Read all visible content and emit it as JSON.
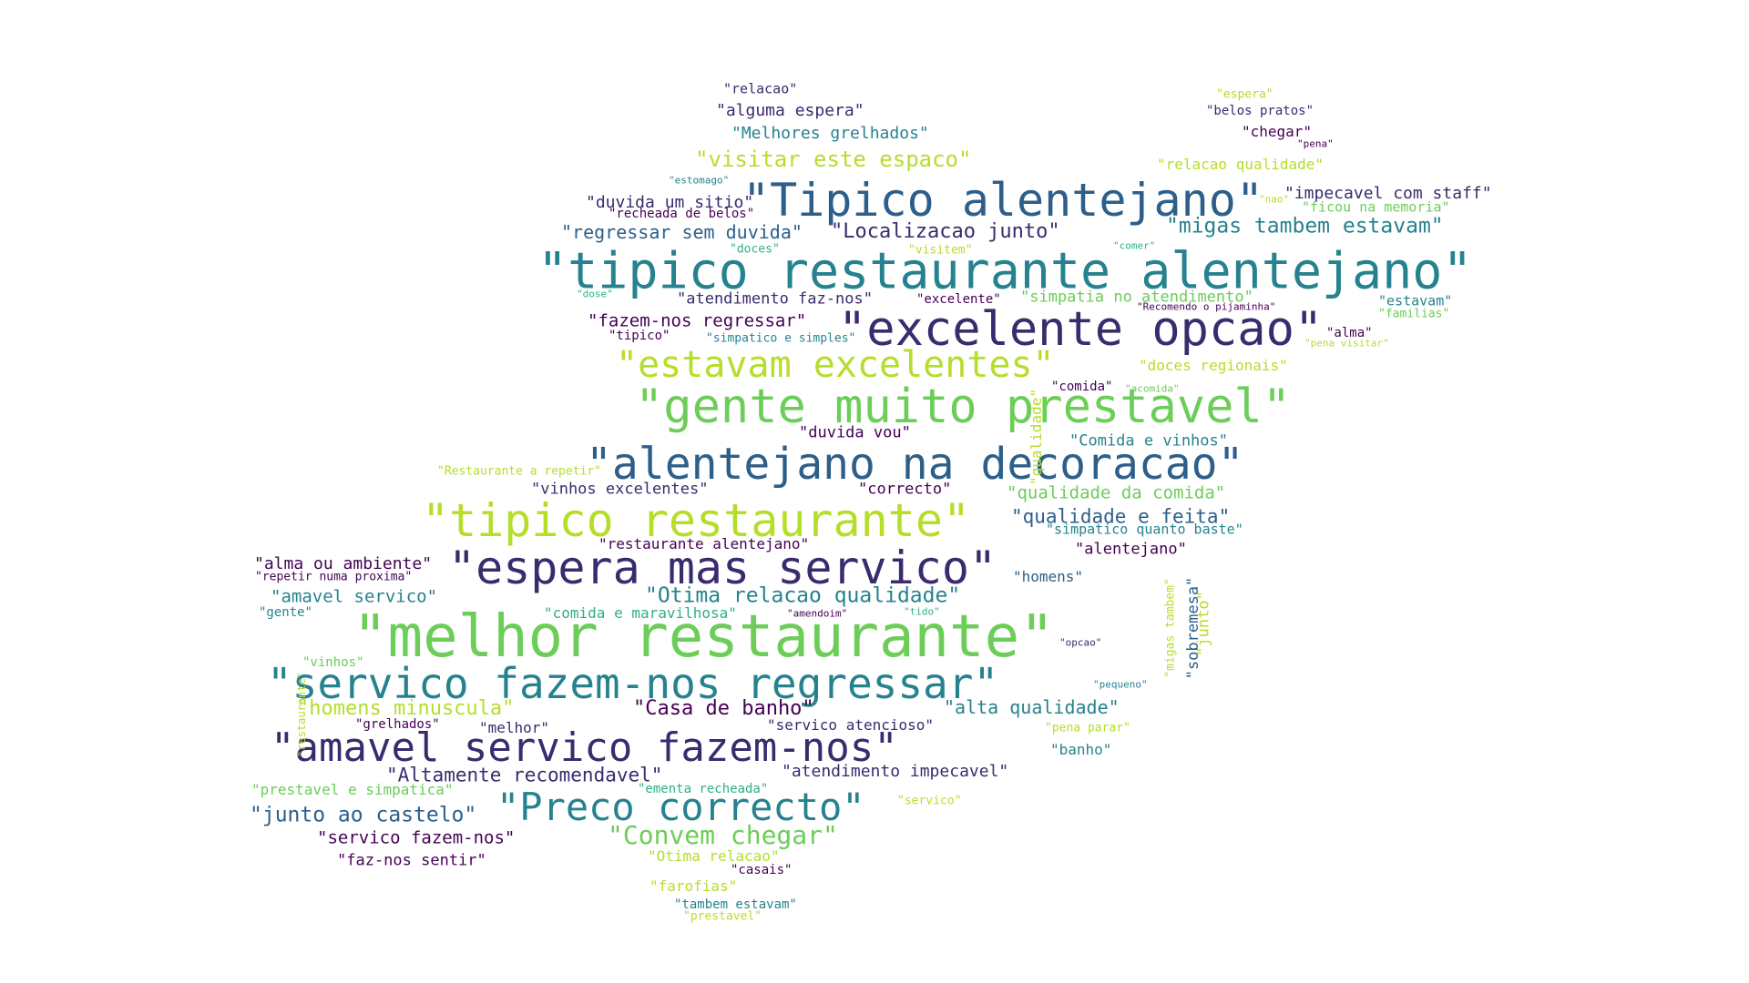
{
  "colors": {
    "c1": "#3a2b6e",
    "c2": "#2c5f8a",
    "c3": "#26828e",
    "c4": "#2db27d",
    "c5": "#6ccd59",
    "c6": "#b5de2b",
    "c7": "#440154"
  },
  "words": [
    {
      "text": "\"relacao\""
    },
    {
      "text": "\"alguma espera\""
    },
    {
      "text": "\"Melhores grelhados\""
    },
    {
      "text": "\"visitar este espaco\""
    },
    {
      "text": "\"estomago\""
    },
    {
      "text": "\"Tipico alentejano\""
    },
    {
      "text": "\"duvida um sitio\""
    },
    {
      "text": "\"recheada de belos\""
    },
    {
      "text": "\"regressar sem duvida\""
    },
    {
      "text": "\"Localizacao junto\""
    },
    {
      "text": "\"doces\""
    },
    {
      "text": "\"visitem\""
    },
    {
      "text": "\"comer\""
    },
    {
      "text": "\"tipico restaurante alentejano\""
    },
    {
      "text": "\"dose\""
    },
    {
      "text": "\"atendimento faz-nos\""
    },
    {
      "text": "\"excelente\""
    },
    {
      "text": "\"simpatia no atendimento\""
    },
    {
      "text": "\"Recomendo o pijaminha\""
    },
    {
      "text": "\"fazem-nos regressar\""
    },
    {
      "text": "\"tipico\""
    },
    {
      "text": "\"simpatico e simples\""
    },
    {
      "text": "\"excelente opcao\""
    },
    {
      "text": "\"estavam excelentes\""
    },
    {
      "text": "\"doces regionais\""
    },
    {
      "text": "\"gente muito prestavel\""
    },
    {
      "text": "\"comida\""
    },
    {
      "text": "\"acomida\""
    },
    {
      "text": "\"duvida vou\""
    },
    {
      "text": "\"Comida e vinhos\""
    },
    {
      "text": "\"alentejano na decoracao\""
    },
    {
      "text": "\"Restaurante a repetir\""
    },
    {
      "text": "\"vinhos excelentes\""
    },
    {
      "text": "\"correcto\""
    },
    {
      "text": "\"qualidade da comida\""
    },
    {
      "text": "\"tipico restaurante\""
    },
    {
      "text": "\"qualidade e feita\""
    },
    {
      "text": "\"simpatico quanto baste\""
    },
    {
      "text": "\"restaurante alentejano\""
    },
    {
      "text": "\"alentejano\""
    },
    {
      "text": "\"alma ou ambiente\""
    },
    {
      "text": "\"repetir numa proxima\""
    },
    {
      "text": "\"espera mas servico\""
    },
    {
      "text": "\"homens\""
    },
    {
      "text": "\"amavel servico\""
    },
    {
      "text": "\"Otima relacao qualidade\""
    },
    {
      "text": "\"gente\""
    },
    {
      "text": "\"comida e maravilhosa\""
    },
    {
      "text": "\"amendoim\""
    },
    {
      "text": "\"tido\""
    },
    {
      "text": "\"melhor restaurante\""
    },
    {
      "text": "\"opcao\""
    },
    {
      "text": "\"vinhos\""
    },
    {
      "text": "\"servico fazem-nos regressar\""
    },
    {
      "text": "\"pequeno\""
    },
    {
      "text": "\"homens minuscula\""
    },
    {
      "text": "\"Casa de banho\""
    },
    {
      "text": "\"alta qualidade\""
    },
    {
      "text": "\"grelhados\""
    },
    {
      "text": "\"melhor\""
    },
    {
      "text": "\"servico atencioso\""
    },
    {
      "text": "\"pena parar\""
    },
    {
      "text": "\"amavel servico fazem-nos\""
    },
    {
      "text": "\"banho\""
    },
    {
      "text": "\"Altamente recomendavel\""
    },
    {
      "text": "\"atendimento impecavel\""
    },
    {
      "text": "\"prestavel e simpatica\""
    },
    {
      "text": "\"ementa recheada\""
    },
    {
      "text": "\"servico\""
    },
    {
      "text": "\"junto ao castelo\""
    },
    {
      "text": "\"Preco correcto\""
    },
    {
      "text": "\"servico fazem-nos\""
    },
    {
      "text": "\"Convem chegar\""
    },
    {
      "text": "\"faz-nos sentir\""
    },
    {
      "text": "\"Otima relacao\""
    },
    {
      "text": "\"casais\""
    },
    {
      "text": "\"farofias\""
    },
    {
      "text": "\"tambem estavam\""
    },
    {
      "text": "\"prestavel\""
    },
    {
      "text": "\"espera\""
    },
    {
      "text": "\"belos pratos\""
    },
    {
      "text": "\"chegar\""
    },
    {
      "text": "\"pena\""
    },
    {
      "text": "\"relacao qualidade\""
    },
    {
      "text": "\"nao\""
    },
    {
      "text": "\"impecavel com staff\""
    },
    {
      "text": "\"ficou na memoria\""
    },
    {
      "text": "\"migas tambem estavam\""
    },
    {
      "text": "\"estavam\""
    },
    {
      "text": "\"familias\""
    },
    {
      "text": "\"alma\""
    },
    {
      "text": "\"pena visitar\""
    },
    {
      "text": "\"qualidade\""
    },
    {
      "text": "\"sobremesa\""
    },
    {
      "text": "\"migas tambem\""
    },
    {
      "text": "\"junto\""
    },
    {
      "text": "\"restaurante\""
    }
  ]
}
